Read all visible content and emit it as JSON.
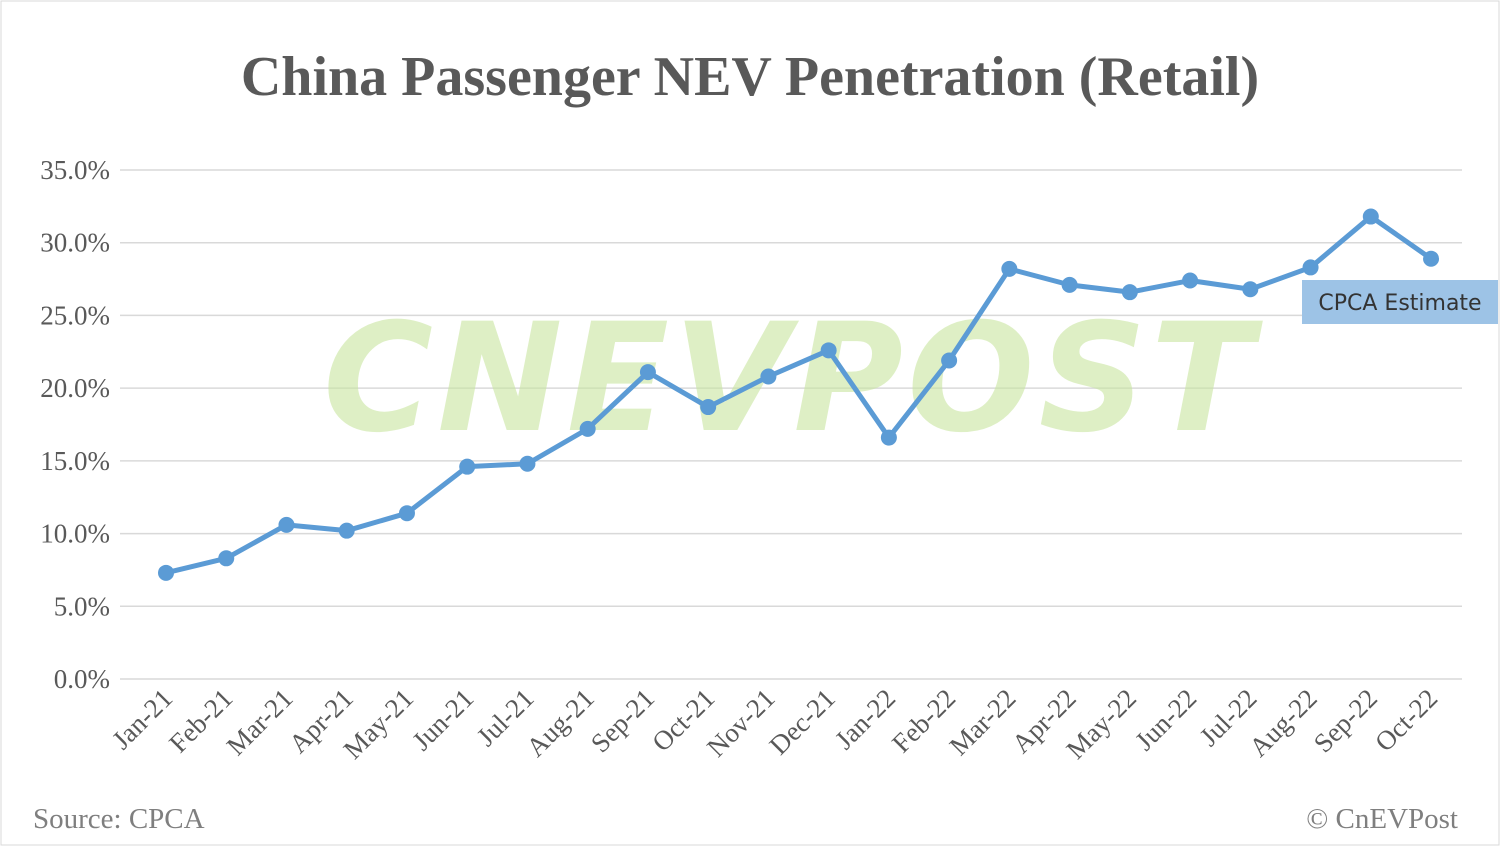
{
  "chart_data": {
    "type": "line",
    "title": "China Passenger NEV Penetration (Retail)",
    "categories": [
      "Jan-21",
      "Feb-21",
      "Mar-21",
      "Apr-21",
      "May-21",
      "Jun-21",
      "Jul-21",
      "Aug-21",
      "Sep-21",
      "Oct-21",
      "Nov-21",
      "Dec-21",
      "Jan-22",
      "Feb-22",
      "Mar-22",
      "Apr-22",
      "May-22",
      "Jun-22",
      "Jul-22",
      "Aug-22",
      "Sep-22",
      "Oct-22"
    ],
    "values": [
      7.3,
      8.3,
      10.6,
      10.2,
      11.4,
      14.6,
      14.8,
      17.2,
      21.1,
      18.7,
      20.8,
      22.6,
      16.6,
      21.9,
      28.2,
      27.1,
      26.6,
      27.4,
      26.8,
      28.3,
      31.8,
      28.9
    ],
    "ylim": [
      0,
      35
    ],
    "yticks": [
      "0.0%",
      "5.0%",
      "10.0%",
      "15.0%",
      "20.0%",
      "25.0%",
      "30.0%",
      "35.0%"
    ],
    "grid": true,
    "line_color": "#5b9bd5",
    "annotation": {
      "text": "CPCA Estimate",
      "color": "#9dc3e6"
    },
    "watermark": "CNEVPOST",
    "source": "Source: CPCA",
    "credit": "© CnEVPost"
  }
}
